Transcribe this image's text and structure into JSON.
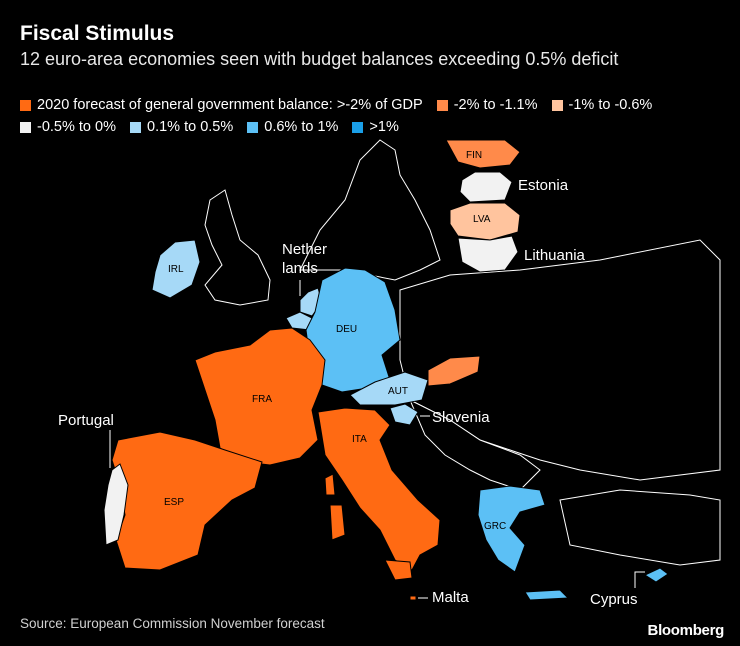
{
  "title": "Fiscal Stimulus",
  "subtitle": "12 euro-area economies seen with budget balances exceeding 0.5% deficit",
  "legend": [
    {
      "label": "2020 forecast of general government balance: >-2% of GDP",
      "color": "#ff6a13"
    },
    {
      "label": "-2% to -1.1%",
      "color": "#ff8a4a"
    },
    {
      "label": "-1% to -0.6%",
      "color": "#ffc49e"
    },
    {
      "label": "-0.5% to 0%",
      "color": "#f2f2f2"
    },
    {
      "label": "0.1% to 0.5%",
      "color": "#a6d9f7"
    },
    {
      "label": "0.6% to 1%",
      "color": "#5cc0f5"
    },
    {
      "label": ">1%",
      "color": "#1a9fe8"
    }
  ],
  "map_labels": {
    "estonia": "Estonia",
    "lithuania": "Lithuania",
    "netherlands_1": "Nether",
    "netherlands_2": "lands",
    "portugal": "Portugal",
    "slovenia": "Slovenia",
    "malta": "Malta",
    "cyprus": "Cyprus"
  },
  "country_codes": {
    "fin": "FIN",
    "lva": "LVA",
    "irl": "IRL",
    "deu": "DEU",
    "fra": "FRA",
    "aut": "AUT",
    "ita": "ITA",
    "esp": "ESP",
    "grc": "GRC"
  },
  "source": "Source: European Commission November forecast",
  "logo": "Bloomberg"
}
